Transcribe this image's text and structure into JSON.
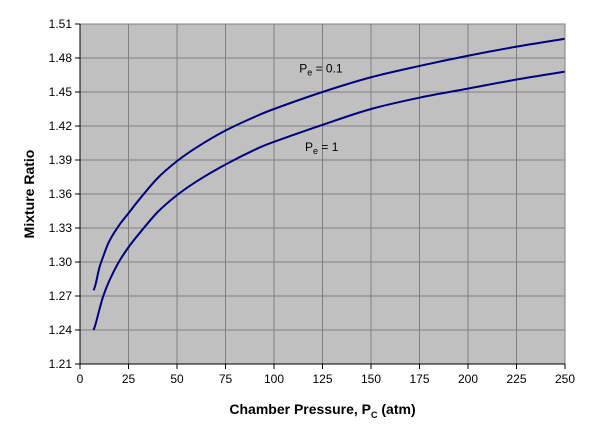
{
  "chart_data": {
    "type": "line",
    "xlabel": "Chamber Pressure, P",
    "xlabel_sub": "C",
    "xlabel_unit": " (atm)",
    "ylabel": "Mixture Ratio",
    "xlim": [
      0,
      250
    ],
    "ylim": [
      1.21,
      1.51
    ],
    "xticks": [
      0,
      25,
      50,
      75,
      100,
      125,
      150,
      175,
      200,
      225,
      250
    ],
    "yticks": [
      1.21,
      1.24,
      1.27,
      1.3,
      1.33,
      1.36,
      1.39,
      1.42,
      1.45,
      1.48,
      1.51
    ],
    "grid": true,
    "plot_background": "#c0c0c0",
    "line_color": "#000080",
    "series": [
      {
        "name_main": "P",
        "name_sub": "e",
        "name_value": " = 0.1",
        "label_at": [
          113,
          1.467
        ],
        "x": [
          7,
          8,
          10,
          12,
          15,
          20,
          25,
          30,
          40,
          50,
          60,
          75,
          90,
          100,
          125,
          150,
          175,
          200,
          225,
          250
        ],
        "y": [
          1.275,
          1.28,
          1.295,
          1.305,
          1.318,
          1.332,
          1.343,
          1.354,
          1.374,
          1.389,
          1.401,
          1.416,
          1.428,
          1.435,
          1.45,
          1.463,
          1.473,
          1.482,
          1.49,
          1.497
        ]
      },
      {
        "name_main": "P",
        "name_sub": "e",
        "name_value": " = 1",
        "label_at": [
          116,
          1.398
        ],
        "x": [
          7,
          8,
          10,
          12,
          15,
          20,
          25,
          30,
          40,
          50,
          60,
          75,
          90,
          100,
          125,
          150,
          175,
          200,
          225,
          250
        ],
        "y": [
          1.24,
          1.245,
          1.258,
          1.27,
          1.283,
          1.3,
          1.313,
          1.324,
          1.344,
          1.359,
          1.371,
          1.386,
          1.399,
          1.406,
          1.421,
          1.435,
          1.445,
          1.453,
          1.461,
          1.468
        ]
      }
    ]
  }
}
